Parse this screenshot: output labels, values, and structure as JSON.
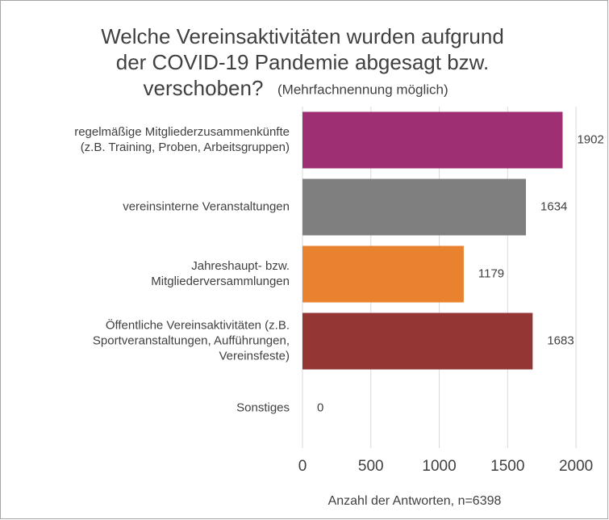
{
  "chart_data": {
    "type": "hbar",
    "title": "Welche Vereinsaktivitäten wurden aufgrund\nder COVID-19 Pandemie abgesagt bzw.\nverschoben?",
    "subtitle": "(Mehrfachnennung möglich)",
    "categories": [
      "regelmäßige Mitgliederzusammenkünfte\n(z.B. Training, Proben, Arbeitsgruppen)",
      "vereinsinterne Veranstaltungen",
      "Jahreshaupt- bzw.\nMitgliederversammlungen",
      "Öffentliche Vereinsaktivitäten (z.B.\nSportveranstaltungen, Aufführungen,\nVereinsfeste)",
      "Sonstiges"
    ],
    "values": [
      1902,
      1634,
      1179,
      1683,
      0
    ],
    "colors": [
      "#9e2f72",
      "#7f7f7f",
      "#e8822f",
      "#943634",
      "#7f7f7f"
    ],
    "xlim": [
      0,
      2200
    ],
    "xticks": [
      0,
      500,
      1000,
      1500,
      2000
    ],
    "xlabel": "Anzahl der Antworten, n=6398",
    "grid": true
  }
}
